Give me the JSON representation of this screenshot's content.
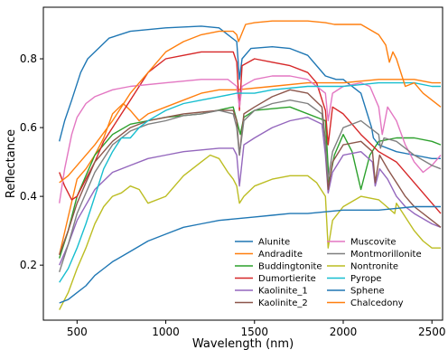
{
  "chart_data": {
    "type": "line",
    "xlabel": "Wavelength (nm)",
    "ylabel": "Reflectance",
    "xlim": [
      310,
      2560
    ],
    "ylim": [
      0.04,
      0.95
    ],
    "xticks": [
      500,
      1000,
      1500,
      2000,
      2500
    ],
    "xtick_labels": [
      "500",
      "1000",
      "1500",
      "2000",
      "2500"
    ],
    "yticks": [
      0.2,
      0.4,
      0.6,
      0.8
    ],
    "ytick_labels": [
      "0.2",
      "0.4",
      "0.6",
      "0.8"
    ],
    "grid": false,
    "legend_position": "lower-right",
    "legend_columns": 2,
    "series": [
      {
        "name": "Alunite",
        "color": "#1f77b4",
        "x": [
          400,
          430,
          470,
          520,
          560,
          600,
          680,
          800,
          1000,
          1200,
          1300,
          1400,
          1415,
          1430,
          1480,
          1600,
          1700,
          1800,
          1900,
          1960,
          2000,
          2100,
          2160,
          2170,
          2200,
          2300,
          2400,
          2500,
          2550
        ],
        "y": [
          0.56,
          0.62,
          0.68,
          0.76,
          0.8,
          0.82,
          0.86,
          0.88,
          0.89,
          0.895,
          0.89,
          0.85,
          0.74,
          0.8,
          0.83,
          0.835,
          0.83,
          0.81,
          0.75,
          0.74,
          0.74,
          0.7,
          0.6,
          0.57,
          0.55,
          0.53,
          0.52,
          0.51,
          0.51
        ]
      },
      {
        "name": "Andradite",
        "color": "#ff7f0e",
        "x": [
          400,
          450,
          500,
          550,
          600,
          650,
          700,
          760,
          800,
          850,
          900,
          1000,
          1100,
          1200,
          1300,
          1400,
          1600,
          1800,
          2000,
          2200,
          2300,
          2400,
          2500,
          2550
        ],
        "y": [
          0.23,
          0.34,
          0.45,
          0.48,
          0.52,
          0.57,
          0.64,
          0.67,
          0.65,
          0.62,
          0.64,
          0.66,
          0.68,
          0.7,
          0.71,
          0.71,
          0.72,
          0.73,
          0.73,
          0.74,
          0.74,
          0.74,
          0.73,
          0.73
        ]
      },
      {
        "name": "Buddingtonite",
        "color": "#2ca02c",
        "x": [
          400,
          450,
          500,
          550,
          600,
          700,
          800,
          900,
          1000,
          1200,
          1380,
          1420,
          1440,
          1500,
          1700,
          1900,
          1920,
          1950,
          2000,
          2050,
          2100,
          2150,
          2200,
          2300,
          2400,
          2500,
          2550
        ],
        "y": [
          0.22,
          0.3,
          0.4,
          0.46,
          0.52,
          0.58,
          0.61,
          0.62,
          0.63,
          0.64,
          0.66,
          0.58,
          0.63,
          0.65,
          0.66,
          0.62,
          0.44,
          0.52,
          0.58,
          0.53,
          0.42,
          0.52,
          0.56,
          0.57,
          0.57,
          0.56,
          0.55
        ]
      },
      {
        "name": "Dumortierite",
        "color": "#d62728",
        "x": [
          400,
          430,
          470,
          500,
          550,
          600,
          650,
          700,
          800,
          900,
          1000,
          1100,
          1200,
          1300,
          1380,
          1400,
          1415,
          1430,
          1500,
          1600,
          1700,
          1800,
          1850,
          1900,
          1915,
          1940,
          2000,
          2100,
          2200,
          2300,
          2400,
          2500,
          2550
        ],
        "y": [
          0.47,
          0.43,
          0.39,
          0.4,
          0.45,
          0.5,
          0.56,
          0.6,
          0.68,
          0.76,
          0.8,
          0.81,
          0.82,
          0.82,
          0.82,
          0.79,
          0.65,
          0.78,
          0.8,
          0.79,
          0.78,
          0.76,
          0.73,
          0.65,
          0.55,
          0.66,
          0.64,
          0.58,
          0.53,
          0.5,
          0.44,
          0.38,
          0.35
        ]
      },
      {
        "name": "Kaolinite_1",
        "color": "#9467bd",
        "x": [
          400,
          450,
          500,
          600,
          700,
          800,
          900,
          1000,
          1100,
          1200,
          1300,
          1380,
          1400,
          1415,
          1440,
          1500,
          1600,
          1700,
          1800,
          1880,
          1900,
          1915,
          1940,
          2000,
          2100,
          2165,
          2180,
          2205,
          2250,
          2300,
          2350,
          2400,
          2500,
          2550
        ],
        "y": [
          0.2,
          0.26,
          0.33,
          0.42,
          0.47,
          0.49,
          0.51,
          0.52,
          0.53,
          0.535,
          0.54,
          0.54,
          0.52,
          0.43,
          0.55,
          0.57,
          0.6,
          0.62,
          0.63,
          0.61,
          0.52,
          0.41,
          0.47,
          0.52,
          0.53,
          0.5,
          0.43,
          0.48,
          0.45,
          0.4,
          0.37,
          0.35,
          0.32,
          0.31
        ]
      },
      {
        "name": "Kaolinite_2",
        "color": "#8c564b",
        "x": [
          400,
          450,
          500,
          600,
          700,
          800,
          900,
          1000,
          1100,
          1200,
          1300,
          1380,
          1400,
          1415,
          1440,
          1500,
          1600,
          1700,
          1800,
          1880,
          1900,
          1915,
          1940,
          2000,
          2100,
          2165,
          2180,
          2205,
          2250,
          2300,
          2350,
          2400,
          2500,
          2550
        ],
        "y": [
          0.23,
          0.3,
          0.38,
          0.5,
          0.56,
          0.6,
          0.62,
          0.63,
          0.64,
          0.645,
          0.65,
          0.65,
          0.62,
          0.52,
          0.64,
          0.66,
          0.69,
          0.71,
          0.7,
          0.66,
          0.56,
          0.42,
          0.5,
          0.55,
          0.56,
          0.53,
          0.44,
          0.52,
          0.48,
          0.44,
          0.4,
          0.37,
          0.33,
          0.31
        ]
      },
      {
        "name": "Muscovite",
        "color": "#e377c2",
        "x": [
          400,
          430,
          470,
          500,
          550,
          600,
          700,
          800,
          1000,
          1200,
          1350,
          1400,
          1415,
          1430,
          1500,
          1600,
          1700,
          1800,
          1900,
          1915,
          1940,
          2000,
          2100,
          2150,
          2200,
          2220,
          2250,
          2300,
          2350,
          2400,
          2450,
          2500,
          2550
        ],
        "y": [
          0.38,
          0.48,
          0.58,
          0.63,
          0.67,
          0.69,
          0.71,
          0.72,
          0.73,
          0.74,
          0.74,
          0.72,
          0.66,
          0.72,
          0.74,
          0.75,
          0.75,
          0.74,
          0.7,
          0.62,
          0.7,
          0.72,
          0.73,
          0.72,
          0.66,
          0.58,
          0.66,
          0.62,
          0.55,
          0.5,
          0.47,
          0.49,
          0.52
        ]
      },
      {
        "name": "Montmorillonite",
        "color": "#7f7f7f",
        "x": [
          400,
          450,
          500,
          600,
          700,
          800,
          900,
          1000,
          1100,
          1200,
          1300,
          1380,
          1400,
          1415,
          1440,
          1500,
          1600,
          1700,
          1800,
          1880,
          1900,
          1915,
          1940,
          2000,
          2100,
          2200,
          2210,
          2230,
          2300,
          2400,
          2500,
          2550
        ],
        "y": [
          0.18,
          0.26,
          0.35,
          0.47,
          0.55,
          0.59,
          0.61,
          0.62,
          0.635,
          0.64,
          0.65,
          0.64,
          0.6,
          0.52,
          0.62,
          0.65,
          0.67,
          0.68,
          0.67,
          0.64,
          0.55,
          0.45,
          0.53,
          0.6,
          0.62,
          0.58,
          0.54,
          0.57,
          0.56,
          0.52,
          0.49,
          0.48
        ]
      },
      {
        "name": "Nontronite",
        "color": "#bcbd22",
        "x": [
          400,
          450,
          500,
          550,
          600,
          650,
          700,
          750,
          800,
          850,
          900,
          1000,
          1100,
          1200,
          1250,
          1300,
          1350,
          1380,
          1400,
          1415,
          1440,
          1500,
          1600,
          1700,
          1800,
          1850,
          1900,
          1915,
          1940,
          2000,
          2100,
          2200,
          2290,
          2300,
          2350,
          2400,
          2450,
          2500,
          2550
        ],
        "y": [
          0.07,
          0.12,
          0.19,
          0.25,
          0.32,
          0.37,
          0.4,
          0.41,
          0.43,
          0.42,
          0.38,
          0.4,
          0.46,
          0.5,
          0.52,
          0.51,
          0.47,
          0.45,
          0.43,
          0.38,
          0.4,
          0.43,
          0.45,
          0.46,
          0.46,
          0.44,
          0.4,
          0.25,
          0.33,
          0.37,
          0.4,
          0.39,
          0.35,
          0.38,
          0.34,
          0.3,
          0.27,
          0.25,
          0.25
        ]
      },
      {
        "name": "Pyrope",
        "color": "#17becf",
        "x": [
          400,
          450,
          500,
          550,
          600,
          650,
          700,
          750,
          800,
          850,
          900,
          1000,
          1100,
          1200,
          1300,
          1400,
          1500,
          1600,
          1800,
          2000,
          2200,
          2400,
          2500,
          2550
        ],
        "y": [
          0.15,
          0.19,
          0.25,
          0.32,
          0.4,
          0.48,
          0.53,
          0.57,
          0.57,
          0.6,
          0.62,
          0.65,
          0.67,
          0.68,
          0.69,
          0.7,
          0.7,
          0.71,
          0.72,
          0.72,
          0.73,
          0.73,
          0.72,
          0.72
        ]
      },
      {
        "name": "Sphene",
        "color": "#1f77b4",
        "x": [
          400,
          450,
          500,
          550,
          600,
          650,
          700,
          800,
          900,
          1000,
          1100,
          1200,
          1300,
          1400,
          1500,
          1600,
          1700,
          1800,
          1900,
          2000,
          2100,
          2200,
          2300,
          2400,
          2500,
          2550
        ],
        "y": [
          0.09,
          0.1,
          0.12,
          0.14,
          0.17,
          0.19,
          0.21,
          0.24,
          0.27,
          0.29,
          0.31,
          0.32,
          0.33,
          0.335,
          0.34,
          0.345,
          0.35,
          0.35,
          0.355,
          0.36,
          0.36,
          0.36,
          0.365,
          0.37,
          0.37,
          0.37
        ]
      },
      {
        "name": "Chalcedony",
        "color": "#ff7f0e",
        "x": [
          400,
          450,
          500,
          600,
          700,
          800,
          900,
          1000,
          1100,
          1200,
          1300,
          1380,
          1400,
          1410,
          1450,
          1500,
          1600,
          1700,
          1800,
          1900,
          1950,
          2000,
          2100,
          2200,
          2240,
          2260,
          2280,
          2300,
          2350,
          2400,
          2450,
          2500,
          2550
        ],
        "y": [
          0.44,
          0.46,
          0.49,
          0.55,
          0.62,
          0.7,
          0.76,
          0.82,
          0.85,
          0.87,
          0.88,
          0.88,
          0.87,
          0.85,
          0.9,
          0.905,
          0.91,
          0.91,
          0.91,
          0.905,
          0.9,
          0.9,
          0.9,
          0.87,
          0.84,
          0.79,
          0.82,
          0.8,
          0.72,
          0.73,
          0.7,
          0.68,
          0.66
        ]
      }
    ]
  }
}
